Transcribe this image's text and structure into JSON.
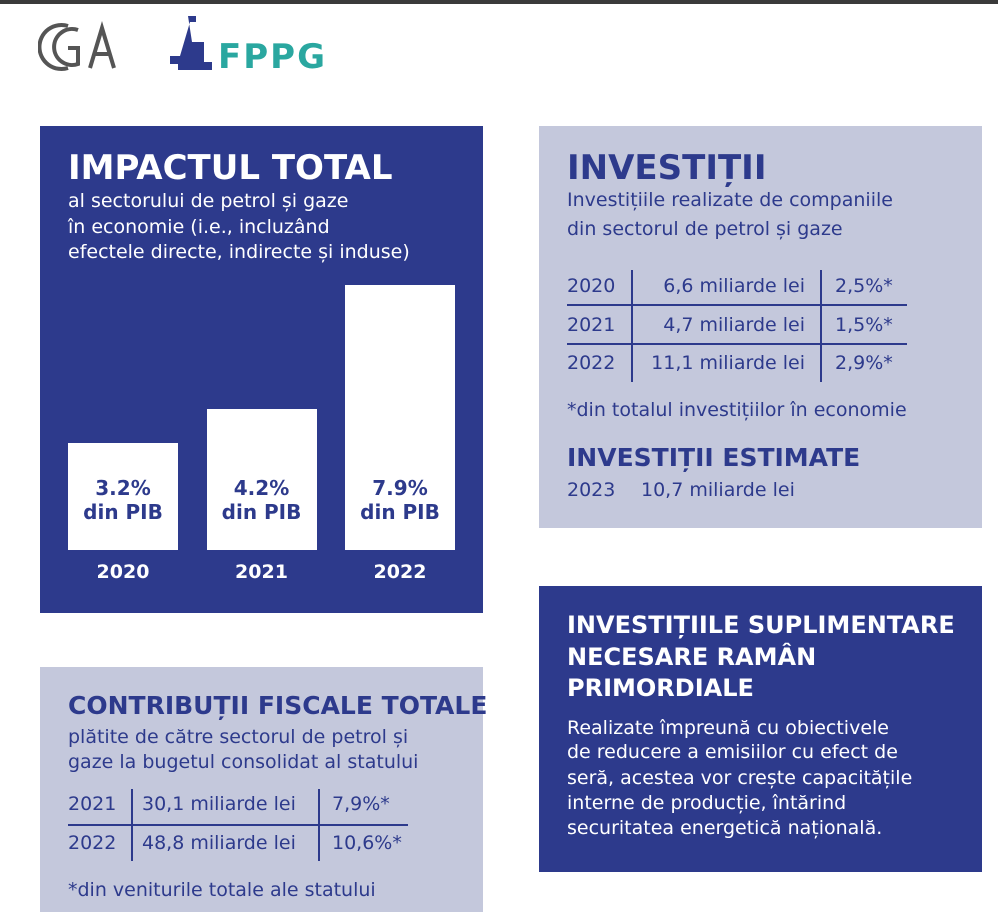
{
  "logos": {
    "fppg": "FPPG"
  },
  "chart_data": {
    "type": "bar",
    "title": "IMPACTUL TOTAL",
    "subtitle": [
      "al sectorului de petrol și gaze",
      "în economie (i.e., incluzând",
      "efectele directe, indirecte și induse)"
    ],
    "categories": [
      "2020",
      "2021",
      "2022"
    ],
    "values": [
      3.2,
      4.2,
      7.9
    ],
    "value_labels": [
      "3.2%",
      "4.2%",
      "7.9%"
    ],
    "bar_label_unit": "din PIB",
    "ylim": [
      0,
      8
    ],
    "color": "#ffffff"
  },
  "investitii": {
    "title": "INVESTIȚII",
    "subtitle": [
      "Investițiile realizate de companiile",
      "din sectorul de petrol și gaze"
    ],
    "table": {
      "rows": [
        [
          "2020",
          "6,6 miliarde lei",
          "2,5%*"
        ],
        [
          "2021",
          "4,7 miliarde lei",
          "1,5%*"
        ],
        [
          "2022",
          "11,1 miliarde lei",
          "2,9%*"
        ]
      ]
    },
    "footnote": "*din totalul investițiilor în economie",
    "estimate_title": "INVESTIȚII ESTIMATE",
    "estimate": [
      "2023",
      "10,7 miliarde lei"
    ]
  },
  "contributii": {
    "title": "CONTRIBUȚII FISCALE TOTALE",
    "subtitle": [
      "plătite de către sectorul de petrol și",
      "gaze la bugetul consolidat al statului"
    ],
    "table": {
      "rows": [
        [
          "2021",
          "30,1 miliarde lei",
          "7,9%*"
        ],
        [
          "2022",
          "48,8 miliarde lei",
          "10,6%*"
        ]
      ]
    },
    "footnote": "*din veniturile totale ale statului"
  },
  "suplimentare": {
    "title": [
      "INVESTIȚIILE SUPLIMENTARE",
      "NECESARE RAMÂN",
      "PRIMORDIALE"
    ],
    "body": [
      "Realizate împreună cu obiectivele",
      "de reducere a emisiilor cu efect de",
      "seră, acestea vor crește capacitățile",
      "interne de producție, întărind",
      "securitatea energetică națională."
    ]
  }
}
